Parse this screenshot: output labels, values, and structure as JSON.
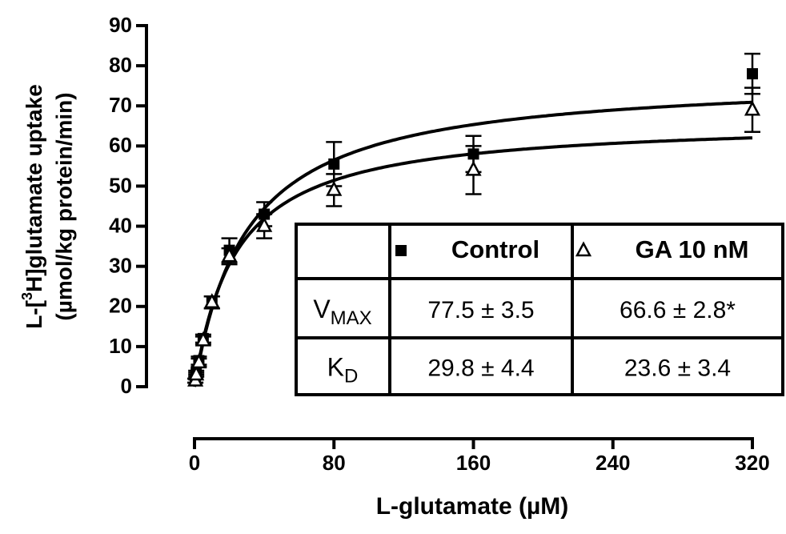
{
  "chart_data": {
    "type": "scatter",
    "ylabel": {
      "pre": "L-[",
      "sup": "3",
      "post": "H]glutamate uptake",
      "line2": "(µmol/kg protein/min)"
    },
    "xlabel": "L-glutamate (µM)",
    "xlim": [
      0,
      320
    ],
    "xticks": [
      0,
      80,
      160,
      240,
      320
    ],
    "ylim": [
      0,
      90
    ],
    "yticks": [
      0,
      10,
      20,
      30,
      40,
      50,
      60,
      70,
      80,
      90
    ],
    "series": [
      {
        "name": "Control",
        "marker": "square",
        "color": "#000000",
        "x": [
          0.5,
          1,
          2.5,
          5,
          10,
          20,
          40,
          80,
          160,
          320
        ],
        "values": [
          1.5,
          3.5,
          6.5,
          12,
          21,
          34,
          43,
          55.5,
          58,
          78
        ],
        "errors": [
          0.5,
          0.5,
          1,
          1,
          1.5,
          3,
          3,
          5.5,
          4.5,
          5
        ],
        "vmax": {
          "value": 77.5,
          "label": "77.5 ± 3.5"
        },
        "kd": {
          "value": 29.8,
          "label": "29.8 ± 4.4"
        }
      },
      {
        "name": "GA 10 nM",
        "marker": "triangle",
        "color": "#000000",
        "x": [
          0.5,
          1,
          2.5,
          5,
          10,
          20,
          40,
          80,
          160,
          320
        ],
        "values": [
          1.5,
          3,
          6,
          11.5,
          21,
          32.5,
          40,
          49,
          54,
          69
        ],
        "errors": [
          0.5,
          0.5,
          1,
          1,
          1.5,
          2,
          3,
          4,
          6,
          5.5
        ],
        "vmax": {
          "value": 66.6,
          "label": "66.6 ± 2.8*"
        },
        "kd": {
          "value": 23.6,
          "label": "23.6 ± 3.4"
        }
      }
    ],
    "table_rows": [
      {
        "main": "V",
        "sub": "MAX",
        "key": "vmax"
      },
      {
        "main": "K",
        "sub": "D",
        "key": "kd"
      }
    ]
  }
}
